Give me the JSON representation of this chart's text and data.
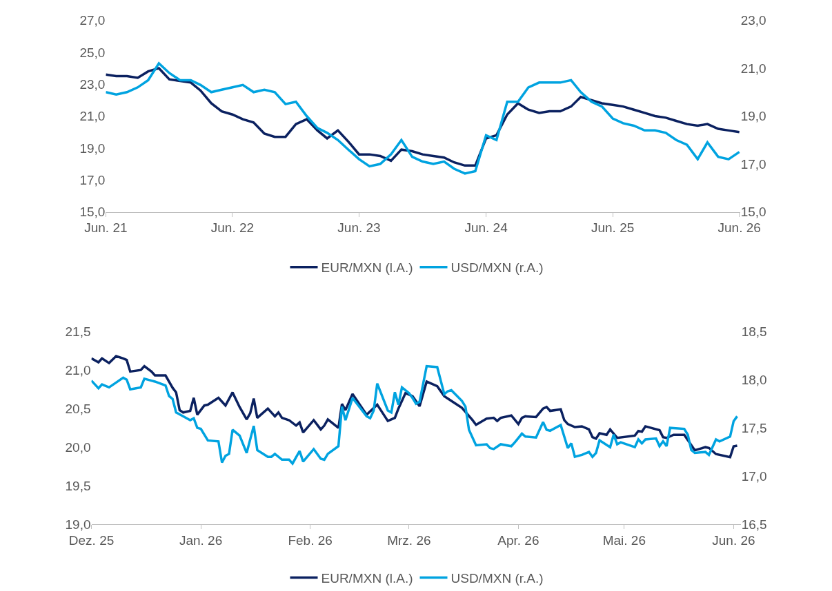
{
  "chart_data": [
    {
      "type": "line",
      "legend": "bottom",
      "xlim": [
        "2021-06-01",
        "2026-06-03"
      ],
      "xticks": [
        {
          "value": "2021-06-01",
          "label": "Jun. 21"
        },
        {
          "value": "2022-06-01",
          "label": "Jun. 22"
        },
        {
          "value": "2023-06-01",
          "label": "Jun. 23"
        },
        {
          "value": "2024-06-01",
          "label": "Jun. 24"
        },
        {
          "value": "2025-06-01",
          "label": "Jun. 25"
        },
        {
          "value": "2026-06-01",
          "label": "Jun. 26"
        }
      ],
      "ylim": [
        15,
        27
      ],
      "yticks": [
        {
          "value": 15,
          "label": "15,0"
        },
        {
          "value": 17,
          "label": "17,0"
        },
        {
          "value": 19,
          "label": "19,0"
        },
        {
          "value": 21,
          "label": "21,0"
        },
        {
          "value": 23,
          "label": "23,0"
        },
        {
          "value": 25,
          "label": "25,0"
        },
        {
          "value": 27,
          "label": "27,0"
        }
      ],
      "y2lim": [
        15,
        23
      ],
      "y2ticks": [
        {
          "value": 15,
          "label": "15,0"
        },
        {
          "value": 17,
          "label": "17,0"
        },
        {
          "value": 19,
          "label": "19,0"
        },
        {
          "value": 21,
          "label": "21,0"
        },
        {
          "value": 23,
          "label": "23,0"
        }
      ],
      "series": [
        {
          "name": "EUR/MXN (l.A.)",
          "color": "#0b2160",
          "x": [
            "2021-06",
            "2021-07",
            "2021-08",
            "2021-09",
            "2021-10",
            "2021-11",
            "2021-12",
            "2022-01",
            "2022-02",
            "2022-03",
            "2022-04",
            "2022-05",
            "2022-06",
            "2022-07",
            "2022-08",
            "2022-09",
            "2022-10",
            "2022-11",
            "2022-12",
            "2023-01",
            "2023-02",
            "2023-03",
            "2023-04",
            "2023-05",
            "2023-06",
            "2023-07",
            "2023-08",
            "2023-09",
            "2023-10",
            "2023-11",
            "2023-12",
            "2024-01",
            "2024-02",
            "2024-03",
            "2024-04",
            "2024-05",
            "2024-06",
            "2024-07",
            "2024-08",
            "2024-09",
            "2024-10",
            "2024-11",
            "2024-12",
            "2025-01",
            "2025-02",
            "2025-03",
            "2025-04",
            "2025-05",
            "2025-06",
            "2025-07",
            "2025-08",
            "2025-09",
            "2025-10",
            "2025-11",
            "2025-12",
            "2026-01",
            "2026-02",
            "2026-03",
            "2026-04",
            "2026-05",
            "2026-06"
          ],
          "values": [
            23.6,
            23.5,
            23.5,
            23.4,
            23.8,
            24.0,
            23.3,
            23.2,
            23.1,
            22.6,
            21.8,
            21.3,
            21.1,
            20.8,
            20.6,
            19.9,
            19.7,
            19.7,
            20.5,
            20.8,
            20.1,
            19.6,
            20.1,
            19.4,
            18.6,
            18.6,
            18.5,
            18.2,
            18.9,
            18.8,
            18.6,
            18.5,
            18.4,
            18.1,
            17.9,
            17.9,
            19.6,
            19.8,
            21.1,
            21.8,
            21.4,
            21.2,
            21.3,
            21.3,
            21.6,
            22.2,
            22.0,
            21.8,
            21.7,
            21.6,
            21.4,
            21.2,
            21.0,
            20.9,
            20.7,
            20.5,
            20.4,
            20.5,
            20.2,
            20.1,
            20.0
          ]
        },
        {
          "name": "USD/MXN (r.A.)",
          "color": "#00a3e0",
          "axis": "y2",
          "x": [
            "2021-06",
            "2021-07",
            "2021-08",
            "2021-09",
            "2021-10",
            "2021-11",
            "2021-12",
            "2022-01",
            "2022-02",
            "2022-03",
            "2022-04",
            "2022-05",
            "2022-06",
            "2022-07",
            "2022-08",
            "2022-09",
            "2022-10",
            "2022-11",
            "2022-12",
            "2023-01",
            "2023-02",
            "2023-03",
            "2023-04",
            "2023-05",
            "2023-06",
            "2023-07",
            "2023-08",
            "2023-09",
            "2023-10",
            "2023-11",
            "2023-12",
            "2024-01",
            "2024-02",
            "2024-03",
            "2024-04",
            "2024-05",
            "2024-06",
            "2024-07",
            "2024-08",
            "2024-09",
            "2024-10",
            "2024-11",
            "2024-12",
            "2025-01",
            "2025-02",
            "2025-03",
            "2025-04",
            "2025-05",
            "2025-06",
            "2025-07",
            "2025-08",
            "2025-09",
            "2025-10",
            "2025-11",
            "2025-12",
            "2026-01",
            "2026-02",
            "2026-03",
            "2026-04",
            "2026-05",
            "2026-06"
          ],
          "values": [
            20.0,
            19.9,
            20.0,
            20.2,
            20.5,
            21.2,
            20.8,
            20.5,
            20.5,
            20.3,
            20.0,
            20.1,
            20.2,
            20.3,
            20.0,
            20.1,
            20.0,
            19.5,
            19.6,
            19.0,
            18.5,
            18.3,
            18.0,
            17.6,
            17.2,
            16.9,
            17.0,
            17.4,
            18.0,
            17.3,
            17.1,
            17.0,
            17.1,
            16.8,
            16.6,
            16.7,
            18.2,
            18.0,
            19.6,
            19.6,
            20.2,
            20.4,
            20.4,
            20.4,
            20.5,
            20.0,
            19.6,
            19.4,
            18.9,
            18.7,
            18.6,
            18.4,
            18.4,
            18.3,
            18.0,
            17.8,
            17.2,
            17.9,
            17.3,
            17.2,
            17.5
          ]
        }
      ]
    },
    {
      "type": "line",
      "legend": "bottom",
      "xlim": [
        "2025-12-01",
        "2026-06-03"
      ],
      "xticks": [
        {
          "value": "2025-12-01",
          "label": "Dez. 25"
        },
        {
          "value": "2026-01-01",
          "label": "Jan. 26"
        },
        {
          "value": "2026-02-01",
          "label": "Feb. 26"
        },
        {
          "value": "2026-03-01",
          "label": "Mrz. 26"
        },
        {
          "value": "2026-04-01",
          "label": "Apr. 26"
        },
        {
          "value": "2026-05-01",
          "label": "Mai. 26"
        },
        {
          "value": "2026-06-01",
          "label": "Jun. 26"
        }
      ],
      "ylim": [
        19,
        21.5
      ],
      "yticks": [
        {
          "value": 19,
          "label": "19,0"
        },
        {
          "value": 19.5,
          "label": "19,5"
        },
        {
          "value": 20,
          "label": "20,0"
        },
        {
          "value": 20.5,
          "label": "20,5"
        },
        {
          "value": 21,
          "label": "21,0"
        },
        {
          "value": 21.5,
          "label": "21,5"
        }
      ],
      "y2lim": [
        16.5,
        18.5
      ],
      "y2ticks": [
        {
          "value": 16.5,
          "label": "16,5"
        },
        {
          "value": 17,
          "label": "17,0"
        },
        {
          "value": 17.5,
          "label": "17,5"
        },
        {
          "value": 18,
          "label": "18,0"
        },
        {
          "value": 18.5,
          "label": "18,5"
        }
      ],
      "series": [
        {
          "name": "EUR/MXN (l.A.)",
          "color": "#0b2160",
          "x": [
            "2025-12-01",
            "2025-12-03",
            "2025-12-04",
            "2025-12-06",
            "2025-12-08",
            "2025-12-10",
            "2025-12-11",
            "2025-12-12",
            "2025-12-15",
            "2025-12-16",
            "2025-12-18",
            "2025-12-19",
            "2025-12-22",
            "2025-12-24",
            "2025-12-25",
            "2025-12-26",
            "2025-12-27",
            "2025-12-29",
            "2025-12-30",
            "2025-12-31",
            "2026-01-02",
            "2026-01-03",
            "2026-01-06",
            "2026-01-08",
            "2026-01-10",
            "2026-01-12",
            "2026-01-14",
            "2026-01-15",
            "2026-01-16",
            "2026-01-17",
            "2026-01-20",
            "2026-01-22",
            "2026-01-23",
            "2026-01-24",
            "2026-01-26",
            "2026-01-28",
            "2026-01-29",
            "2026-01-30",
            "2026-02-02",
            "2026-02-04",
            "2026-02-05",
            "2026-02-06",
            "2026-02-09",
            "2026-02-10",
            "2026-02-11",
            "2026-02-13",
            "2026-02-17",
            "2026-02-20",
            "2026-02-21",
            "2026-02-23",
            "2026-02-25",
            "2026-02-26",
            "2026-02-28",
            "2026-03-02",
            "2026-03-04",
            "2026-03-06",
            "2026-03-09",
            "2026-03-11",
            "2026-03-13",
            "2026-03-16",
            "2026-03-19",
            "2026-03-20",
            "2026-03-23",
            "2026-03-25",
            "2026-03-26",
            "2026-03-27",
            "2026-03-30",
            "2026-04-01",
            "2026-04-02",
            "2026-04-03",
            "2026-04-06",
            "2026-04-08",
            "2026-04-09",
            "2026-04-10",
            "2026-04-13",
            "2026-04-14",
            "2026-04-15",
            "2026-04-17",
            "2026-04-19",
            "2026-04-21",
            "2026-04-22",
            "2026-04-23",
            "2026-04-24",
            "2026-04-26",
            "2026-04-27",
            "2026-04-29",
            "2026-05-04",
            "2026-05-05",
            "2026-05-06",
            "2026-05-07",
            "2026-05-11",
            "2026-05-12",
            "2026-05-13",
            "2026-05-15",
            "2026-05-18",
            "2026-05-21",
            "2026-05-24",
            "2026-05-25",
            "2026-05-27",
            "2026-05-31",
            "2026-06-01",
            "2026-06-02"
          ],
          "values": [
            21.15,
            21.1,
            21.15,
            21.09,
            21.18,
            21.15,
            21.13,
            20.98,
            21.0,
            21.05,
            20.98,
            20.93,
            20.93,
            20.77,
            20.71,
            20.48,
            20.45,
            20.47,
            20.64,
            20.42,
            20.54,
            20.55,
            20.64,
            20.54,
            20.71,
            20.52,
            20.36,
            20.44,
            20.63,
            20.38,
            20.5,
            20.4,
            20.45,
            20.38,
            20.35,
            20.28,
            20.32,
            20.19,
            20.35,
            20.23,
            20.28,
            20.36,
            20.25,
            20.56,
            20.48,
            20.69,
            20.42,
            20.55,
            20.48,
            20.34,
            20.38,
            20.5,
            20.7,
            20.66,
            20.53,
            20.85,
            20.79,
            20.66,
            20.6,
            20.51,
            20.35,
            20.29,
            20.37,
            20.38,
            20.34,
            20.38,
            20.41,
            20.3,
            20.38,
            20.4,
            20.39,
            20.5,
            20.52,
            20.47,
            20.49,
            20.35,
            20.3,
            20.26,
            20.27,
            20.23,
            20.13,
            20.11,
            20.18,
            20.16,
            20.23,
            20.12,
            20.15,
            20.21,
            20.2,
            20.27,
            20.22,
            20.13,
            20.12,
            20.16,
            20.16,
            19.96,
            20.0,
            19.99,
            19.91,
            19.87,
            20.01,
            20.02
          ]
        },
        {
          "name": "USD/MXN (r.A.)",
          "color": "#00a3e0",
          "axis": "y2",
          "x": [
            "2025-12-01",
            "2025-12-03",
            "2025-12-04",
            "2025-12-06",
            "2025-12-08",
            "2025-12-10",
            "2025-12-11",
            "2025-12-12",
            "2025-12-15",
            "2025-12-16",
            "2025-12-18",
            "2025-12-19",
            "2025-12-22",
            "2025-12-23",
            "2025-12-24",
            "2025-12-25",
            "2025-12-29",
            "2025-12-30",
            "2025-12-31",
            "2026-01-01",
            "2026-01-03",
            "2026-01-06",
            "2026-01-07",
            "2026-01-08",
            "2026-01-09",
            "2026-01-10",
            "2026-01-12",
            "2026-01-14",
            "2026-01-16",
            "2026-01-17",
            "2026-01-20",
            "2026-01-21",
            "2026-01-22",
            "2026-01-24",
            "2026-01-26",
            "2026-01-27",
            "2026-01-29",
            "2026-01-30",
            "2026-02-02",
            "2026-02-04",
            "2026-02-05",
            "2026-02-06",
            "2026-02-09",
            "2026-02-10",
            "2026-02-11",
            "2026-02-13",
            "2026-02-17",
            "2026-02-18",
            "2026-02-19",
            "2026-02-20",
            "2026-02-23",
            "2026-02-24",
            "2026-02-25",
            "2026-02-26",
            "2026-02-27",
            "2026-03-01",
            "2026-03-02",
            "2026-03-03",
            "2026-03-04",
            "2026-03-06",
            "2026-03-09",
            "2026-03-11",
            "2026-03-12",
            "2026-03-13",
            "2026-03-16",
            "2026-03-17",
            "2026-03-18",
            "2026-03-19",
            "2026-03-20",
            "2026-03-23",
            "2026-03-24",
            "2026-03-25",
            "2026-03-27",
            "2026-03-30",
            "2026-03-31",
            "2026-04-02",
            "2026-04-03",
            "2026-04-06",
            "2026-04-08",
            "2026-04-09",
            "2026-04-10",
            "2026-04-13",
            "2026-04-15",
            "2026-04-16",
            "2026-04-17",
            "2026-04-19",
            "2026-04-21",
            "2026-04-22",
            "2026-04-23",
            "2026-04-24",
            "2026-04-27",
            "2026-04-28",
            "2026-04-29",
            "2026-04-30",
            "2026-05-04",
            "2026-05-05",
            "2026-05-06",
            "2026-05-07",
            "2026-05-10",
            "2026-05-11",
            "2026-05-12",
            "2026-05-13",
            "2026-05-14",
            "2026-05-18",
            "2026-05-19",
            "2026-05-20",
            "2026-05-21",
            "2026-05-24",
            "2026-05-25",
            "2026-05-27",
            "2026-05-28",
            "2026-05-31",
            "2026-06-01",
            "2026-06-02"
          ],
          "values": [
            17.99,
            17.91,
            17.95,
            17.92,
            17.97,
            18.02,
            18.0,
            17.9,
            17.92,
            18.01,
            17.99,
            17.98,
            17.94,
            17.83,
            17.8,
            17.66,
            17.58,
            17.6,
            17.5,
            17.49,
            17.37,
            17.36,
            17.14,
            17.21,
            17.23,
            17.48,
            17.42,
            17.24,
            17.52,
            17.27,
            17.2,
            17.2,
            17.23,
            17.17,
            17.17,
            17.13,
            17.26,
            17.15,
            17.28,
            17.18,
            17.17,
            17.23,
            17.31,
            17.72,
            17.58,
            17.81,
            17.62,
            17.6,
            17.68,
            17.96,
            17.68,
            17.66,
            17.87,
            17.74,
            17.92,
            17.86,
            17.81,
            17.75,
            17.77,
            18.14,
            18.13,
            17.85,
            17.88,
            17.89,
            17.78,
            17.72,
            17.48,
            17.4,
            17.32,
            17.33,
            17.29,
            17.28,
            17.33,
            17.31,
            17.35,
            17.44,
            17.41,
            17.4,
            17.56,
            17.48,
            17.47,
            17.53,
            17.29,
            17.34,
            17.2,
            17.22,
            17.25,
            17.2,
            17.24,
            17.37,
            17.3,
            17.43,
            17.33,
            17.35,
            17.3,
            17.38,
            17.34,
            17.38,
            17.39,
            17.31,
            17.36,
            17.31,
            17.5,
            17.49,
            17.43,
            17.27,
            17.24,
            17.25,
            17.22,
            17.38,
            17.36,
            17.41,
            17.57,
            17.62
          ]
        }
      ]
    }
  ]
}
